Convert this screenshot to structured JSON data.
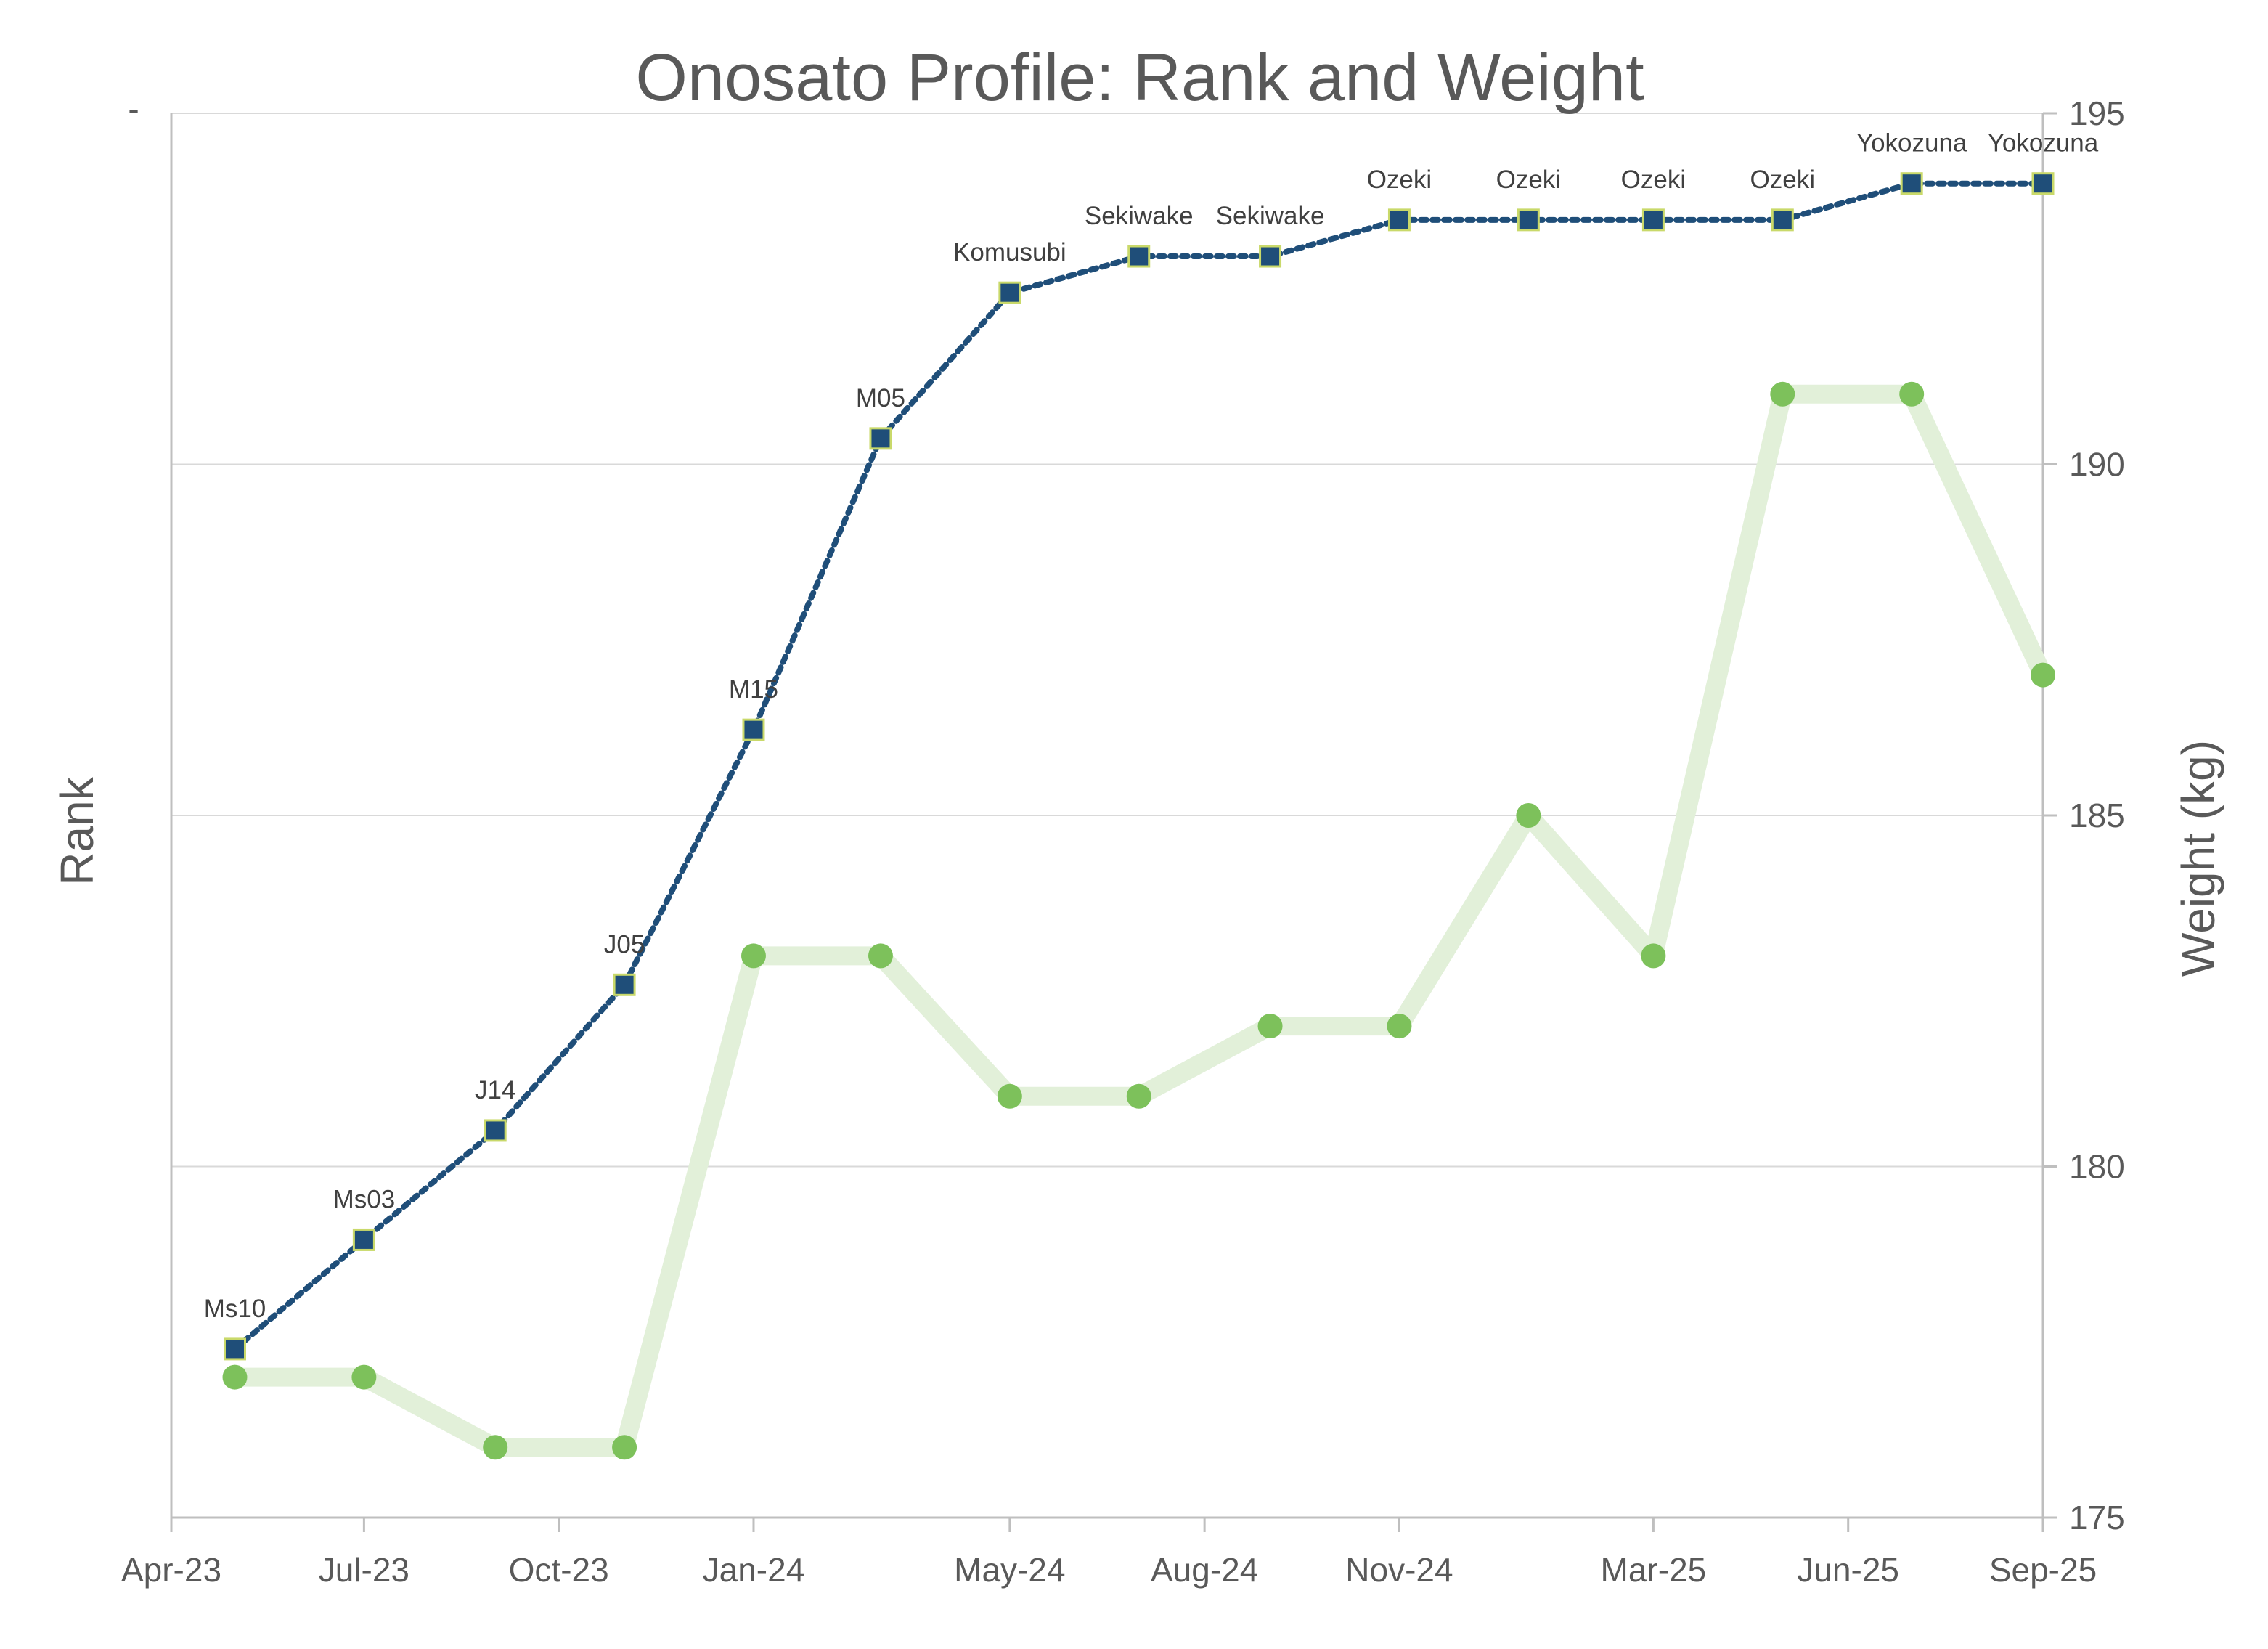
{
  "chart_data": {
    "type": "line",
    "title": "Onosato Profile: Rank and Weight",
    "ylabel_left": "Rank",
    "ylabel_right": "Weight (kg)",
    "y_left_tick_labels": [
      "-"
    ],
    "y_right_ticks": [
      175,
      180,
      185,
      190,
      195
    ],
    "ylim_right": [
      175,
      195
    ],
    "x_tick_labels": [
      "Apr-23",
      "Jul-23",
      "Oct-23",
      "Jan-24",
      "May-24",
      "Aug-24",
      "Nov-24",
      "Mar-25",
      "Jun-25",
      "Sep-25"
    ],
    "x_tick_dates": [
      "2023-04-01",
      "2023-07-01",
      "2023-10-01",
      "2024-01-01",
      "2024-05-01",
      "2024-08-01",
      "2024-11-01",
      "2025-03-01",
      "2025-06-01",
      "2025-09-01"
    ],
    "x_range": [
      "2023-04-01",
      "2025-09-01"
    ],
    "grid": true,
    "x": [
      "2023-05-01",
      "2023-07-01",
      "2023-09-01",
      "2023-11-01",
      "2024-01-01",
      "2024-03-01",
      "2024-05-01",
      "2024-07-01",
      "2024-09-01",
      "2024-11-01",
      "2025-01-01",
      "2025-03-01",
      "2025-05-01",
      "2025-07-01",
      "2025-09-01"
    ],
    "series": [
      {
        "axis": "left",
        "color": "#1f4e79",
        "marker_fill": "#1f4e79",
        "marker_edge": "#c9d96a",
        "style": "dotted",
        "marker": "square",
        "labels": [
          "Ms10",
          "Ms03",
          "J14",
          "J05",
          "M15",
          "M05",
          "Komusubi",
          "Sekiwake",
          "Sekiwake",
          "Ozeki",
          "Ozeki",
          "Ozeki",
          "Ozeki",
          "Yokozuna",
          "Yokozuna"
        ],
        "values": [
          32,
          29,
          26,
          22,
          15,
          7,
          3,
          2,
          2,
          1,
          1,
          1,
          1,
          0,
          0
        ]
      },
      {
        "axis": "right",
        "color": "#e2f0d9",
        "marker_fill": "#7dc15b",
        "style": "solid",
        "marker": "circle",
        "values": [
          177,
          177,
          176,
          176,
          183,
          183,
          181,
          181,
          182,
          182,
          185,
          183,
          191,
          191,
          187
        ]
      }
    ]
  }
}
